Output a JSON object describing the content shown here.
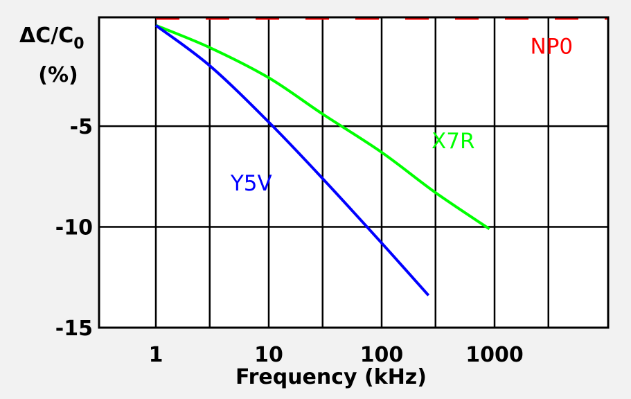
{
  "chart_data": {
    "type": "line",
    "xscale": "log",
    "xlim": [
      1,
      8000
    ],
    "ylim": [
      -15,
      0.4
    ],
    "grid": true,
    "legend": "none",
    "xlabel": "Frequency (kHz)",
    "ylabel": {
      "main": "ΔC/C",
      "sub": "0",
      "unit": "(%)"
    },
    "x_ticks": [
      {
        "value": 1,
        "label": "1"
      },
      {
        "value": 10,
        "label": "10"
      },
      {
        "value": 100,
        "label": "100"
      },
      {
        "value": 1000,
        "label": "1000"
      }
    ],
    "y_ticks": [
      {
        "value": -5,
        "label": "-5"
      },
      {
        "value": -10,
        "label": "-10"
      },
      {
        "value": -15,
        "label": "-15"
      }
    ],
    "series": [
      {
        "name": "NP0",
        "color": "#ff0000",
        "dashed": true,
        "x": [
          1,
          8000
        ],
        "y": [
          0.05,
          0.05
        ]
      },
      {
        "name": "X7R",
        "color": "#00ff00",
        "dashed": false,
        "x": [
          1,
          3,
          10,
          30,
          100,
          300,
          900
        ],
        "y": [
          0,
          -1.1,
          -2.6,
          -4.4,
          -6.3,
          -8.3,
          -10.1
        ]
      },
      {
        "name": "Y5V",
        "color": "#0000ff",
        "dashed": false,
        "x": [
          1,
          3,
          10,
          30,
          100,
          260
        ],
        "y": [
          0,
          -2.0,
          -4.8,
          -7.6,
          -10.8,
          -13.4
        ]
      }
    ]
  }
}
